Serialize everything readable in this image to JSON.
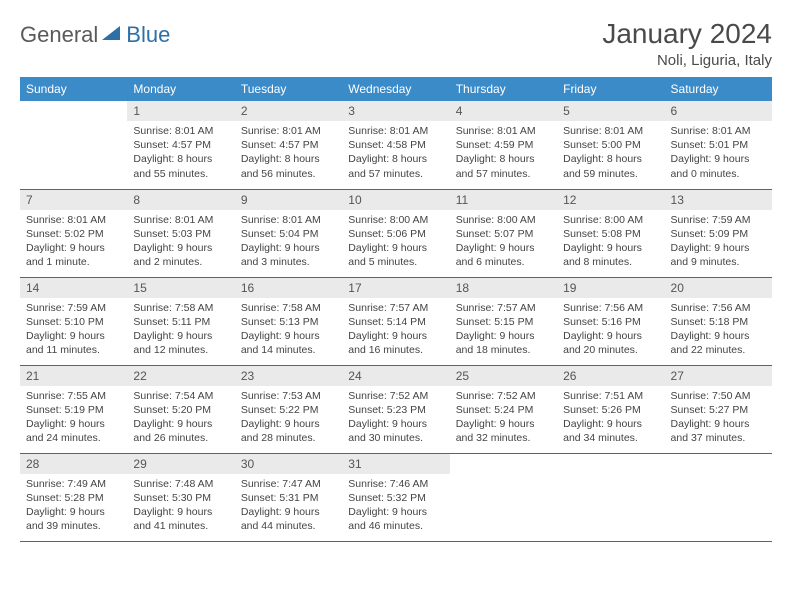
{
  "logo": {
    "part1": "General",
    "part2": "Blue"
  },
  "title": "January 2024",
  "location": "Noli, Liguria, Italy",
  "colors": {
    "header_bg": "#3b8bc9",
    "header_text": "#ffffff",
    "daynum_bg": "#eaeaea",
    "border": "#2f6fa8",
    "text": "#444444",
    "logo_gray": "#5a5a5a",
    "logo_blue": "#2f6fa8"
  },
  "weekdays": [
    "Sunday",
    "Monday",
    "Tuesday",
    "Wednesday",
    "Thursday",
    "Friday",
    "Saturday"
  ],
  "weeks": [
    [
      {
        "num": "",
        "lines": [
          "",
          "",
          "",
          ""
        ]
      },
      {
        "num": "1",
        "lines": [
          "Sunrise: 8:01 AM",
          "Sunset: 4:57 PM",
          "Daylight: 8 hours",
          "and 55 minutes."
        ]
      },
      {
        "num": "2",
        "lines": [
          "Sunrise: 8:01 AM",
          "Sunset: 4:57 PM",
          "Daylight: 8 hours",
          "and 56 minutes."
        ]
      },
      {
        "num": "3",
        "lines": [
          "Sunrise: 8:01 AM",
          "Sunset: 4:58 PM",
          "Daylight: 8 hours",
          "and 57 minutes."
        ]
      },
      {
        "num": "4",
        "lines": [
          "Sunrise: 8:01 AM",
          "Sunset: 4:59 PM",
          "Daylight: 8 hours",
          "and 57 minutes."
        ]
      },
      {
        "num": "5",
        "lines": [
          "Sunrise: 8:01 AM",
          "Sunset: 5:00 PM",
          "Daylight: 8 hours",
          "and 59 minutes."
        ]
      },
      {
        "num": "6",
        "lines": [
          "Sunrise: 8:01 AM",
          "Sunset: 5:01 PM",
          "Daylight: 9 hours",
          "and 0 minutes."
        ]
      }
    ],
    [
      {
        "num": "7",
        "lines": [
          "Sunrise: 8:01 AM",
          "Sunset: 5:02 PM",
          "Daylight: 9 hours",
          "and 1 minute."
        ]
      },
      {
        "num": "8",
        "lines": [
          "Sunrise: 8:01 AM",
          "Sunset: 5:03 PM",
          "Daylight: 9 hours",
          "and 2 minutes."
        ]
      },
      {
        "num": "9",
        "lines": [
          "Sunrise: 8:01 AM",
          "Sunset: 5:04 PM",
          "Daylight: 9 hours",
          "and 3 minutes."
        ]
      },
      {
        "num": "10",
        "lines": [
          "Sunrise: 8:00 AM",
          "Sunset: 5:06 PM",
          "Daylight: 9 hours",
          "and 5 minutes."
        ]
      },
      {
        "num": "11",
        "lines": [
          "Sunrise: 8:00 AM",
          "Sunset: 5:07 PM",
          "Daylight: 9 hours",
          "and 6 minutes."
        ]
      },
      {
        "num": "12",
        "lines": [
          "Sunrise: 8:00 AM",
          "Sunset: 5:08 PM",
          "Daylight: 9 hours",
          "and 8 minutes."
        ]
      },
      {
        "num": "13",
        "lines": [
          "Sunrise: 7:59 AM",
          "Sunset: 5:09 PM",
          "Daylight: 9 hours",
          "and 9 minutes."
        ]
      }
    ],
    [
      {
        "num": "14",
        "lines": [
          "Sunrise: 7:59 AM",
          "Sunset: 5:10 PM",
          "Daylight: 9 hours",
          "and 11 minutes."
        ]
      },
      {
        "num": "15",
        "lines": [
          "Sunrise: 7:58 AM",
          "Sunset: 5:11 PM",
          "Daylight: 9 hours",
          "and 12 minutes."
        ]
      },
      {
        "num": "16",
        "lines": [
          "Sunrise: 7:58 AM",
          "Sunset: 5:13 PM",
          "Daylight: 9 hours",
          "and 14 minutes."
        ]
      },
      {
        "num": "17",
        "lines": [
          "Sunrise: 7:57 AM",
          "Sunset: 5:14 PM",
          "Daylight: 9 hours",
          "and 16 minutes."
        ]
      },
      {
        "num": "18",
        "lines": [
          "Sunrise: 7:57 AM",
          "Sunset: 5:15 PM",
          "Daylight: 9 hours",
          "and 18 minutes."
        ]
      },
      {
        "num": "19",
        "lines": [
          "Sunrise: 7:56 AM",
          "Sunset: 5:16 PM",
          "Daylight: 9 hours",
          "and 20 minutes."
        ]
      },
      {
        "num": "20",
        "lines": [
          "Sunrise: 7:56 AM",
          "Sunset: 5:18 PM",
          "Daylight: 9 hours",
          "and 22 minutes."
        ]
      }
    ],
    [
      {
        "num": "21",
        "lines": [
          "Sunrise: 7:55 AM",
          "Sunset: 5:19 PM",
          "Daylight: 9 hours",
          "and 24 minutes."
        ]
      },
      {
        "num": "22",
        "lines": [
          "Sunrise: 7:54 AM",
          "Sunset: 5:20 PM",
          "Daylight: 9 hours",
          "and 26 minutes."
        ]
      },
      {
        "num": "23",
        "lines": [
          "Sunrise: 7:53 AM",
          "Sunset: 5:22 PM",
          "Daylight: 9 hours",
          "and 28 minutes."
        ]
      },
      {
        "num": "24",
        "lines": [
          "Sunrise: 7:52 AM",
          "Sunset: 5:23 PM",
          "Daylight: 9 hours",
          "and 30 minutes."
        ]
      },
      {
        "num": "25",
        "lines": [
          "Sunrise: 7:52 AM",
          "Sunset: 5:24 PM",
          "Daylight: 9 hours",
          "and 32 minutes."
        ]
      },
      {
        "num": "26",
        "lines": [
          "Sunrise: 7:51 AM",
          "Sunset: 5:26 PM",
          "Daylight: 9 hours",
          "and 34 minutes."
        ]
      },
      {
        "num": "27",
        "lines": [
          "Sunrise: 7:50 AM",
          "Sunset: 5:27 PM",
          "Daylight: 9 hours",
          "and 37 minutes."
        ]
      }
    ],
    [
      {
        "num": "28",
        "lines": [
          "Sunrise: 7:49 AM",
          "Sunset: 5:28 PM",
          "Daylight: 9 hours",
          "and 39 minutes."
        ]
      },
      {
        "num": "29",
        "lines": [
          "Sunrise: 7:48 AM",
          "Sunset: 5:30 PM",
          "Daylight: 9 hours",
          "and 41 minutes."
        ]
      },
      {
        "num": "30",
        "lines": [
          "Sunrise: 7:47 AM",
          "Sunset: 5:31 PM",
          "Daylight: 9 hours",
          "and 44 minutes."
        ]
      },
      {
        "num": "31",
        "lines": [
          "Sunrise: 7:46 AM",
          "Sunset: 5:32 PM",
          "Daylight: 9 hours",
          "and 46 minutes."
        ]
      },
      {
        "num": "",
        "lines": [
          "",
          "",
          "",
          ""
        ]
      },
      {
        "num": "",
        "lines": [
          "",
          "",
          "",
          ""
        ]
      },
      {
        "num": "",
        "lines": [
          "",
          "",
          "",
          ""
        ]
      }
    ]
  ]
}
